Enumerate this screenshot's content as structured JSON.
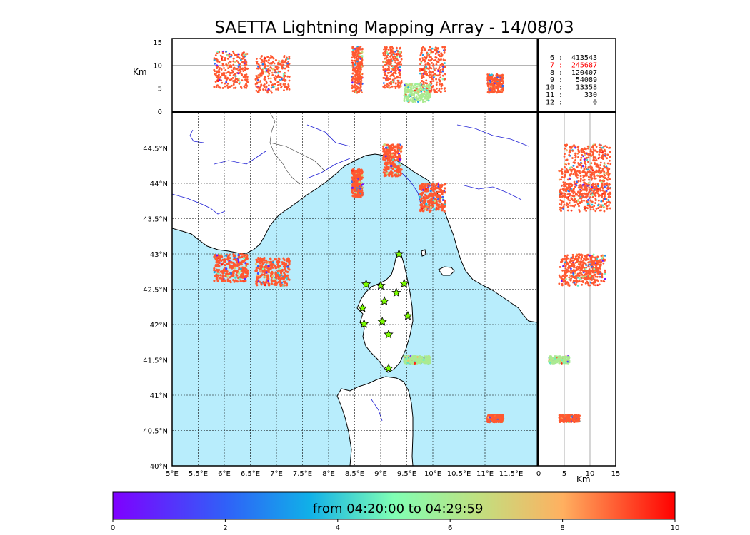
{
  "chart_data": {
    "type": "scatter",
    "title": "SAETTA Lightning Mapping Array - 14/08/03",
    "x_ticks": [
      "5°E",
      "5.5°E",
      "6°E",
      "6.5°E",
      "7°E",
      "7.5°E",
      "8°E",
      "8.5°E",
      "9°E",
      "9.5°E",
      "10°E",
      "10.5°E",
      "11°E",
      "11.5°E"
    ],
    "y_ticks": [
      "40°N",
      "40.5°N",
      "41°N",
      "41.5°N",
      "42°N",
      "42.5°N",
      "43°N",
      "43.5°N",
      "44°N",
      "44.5°N"
    ],
    "xlim": [
      5,
      12
    ],
    "ylim": [
      40,
      45
    ],
    "alt_ticks": [
      "0",
      "5",
      "10",
      "15"
    ],
    "alt_range": [
      0,
      15
    ],
    "alt_unit": "Km",
    "altitude_counts": [
      {
        "label": "6",
        "count": "413543",
        "highlight": false
      },
      {
        "label": "7",
        "count": "245687",
        "highlight": true
      },
      {
        "label": "8",
        "count": "120407",
        "highlight": false
      },
      {
        "label": "9",
        "count": "54089",
        "highlight": false
      },
      {
        "label": "10",
        "count": "13358",
        "highlight": false
      },
      {
        "label": "11",
        "count": "330",
        "highlight": false
      },
      {
        "label": "12",
        "count": "0",
        "highlight": false
      }
    ],
    "highlight_color": "#ff0000",
    "colorbar": {
      "label": "from 04:20:00 to 04:29:59",
      "ticks": [
        "0",
        "2",
        "4",
        "6",
        "8",
        "10"
      ],
      "range": [
        0,
        10
      ],
      "colormap": "rainbow"
    },
    "clusters": [
      {
        "lon": [
          5.8,
          6.45
        ],
        "lat": [
          42.6,
          43.0
        ],
        "alt": [
          5,
          13
        ],
        "time": 9
      },
      {
        "lon": [
          6.6,
          7.25
        ],
        "lat": [
          42.55,
          42.95
        ],
        "alt": [
          4,
          12
        ],
        "time": 9
      },
      {
        "lon": [
          8.45,
          8.65
        ],
        "lat": [
          43.8,
          44.2
        ],
        "alt": [
          4,
          14
        ],
        "time": 9
      },
      {
        "lon": [
          9.05,
          9.4
        ],
        "lat": [
          44.1,
          44.55
        ],
        "alt": [
          5,
          14
        ],
        "time": 9
      },
      {
        "lon": [
          9.75,
          10.25
        ],
        "lat": [
          43.6,
          44.0
        ],
        "alt": [
          4,
          14
        ],
        "time": 9
      },
      {
        "lon": [
          9.45,
          9.95
        ],
        "lat": [
          41.45,
          41.55
        ],
        "alt": [
          2,
          6
        ],
        "time": 6
      },
      {
        "lon": [
          11.05,
          11.35
        ],
        "lat": [
          40.62,
          40.72
        ],
        "alt": [
          4,
          8
        ],
        "time": 9
      }
    ],
    "sensor_stations": [
      {
        "lon": 9.35,
        "lat": 43.0
      },
      {
        "lon": 8.72,
        "lat": 42.57
      },
      {
        "lon": 9.0,
        "lat": 42.55
      },
      {
        "lon": 9.45,
        "lat": 42.58
      },
      {
        "lon": 9.3,
        "lat": 42.45
      },
      {
        "lon": 9.07,
        "lat": 42.33
      },
      {
        "lon": 8.65,
        "lat": 42.23
      },
      {
        "lon": 9.52,
        "lat": 42.12
      },
      {
        "lon": 8.68,
        "lat": 42.01
      },
      {
        "lon": 9.03,
        "lat": 42.04
      },
      {
        "lon": 9.15,
        "lat": 41.86
      },
      {
        "lon": 9.15,
        "lat": 41.38
      }
    ],
    "colors": {
      "sea": "#b8edfc",
      "land": "#ffffff",
      "rivers": "#1f1fd4",
      "stations": "#7cfc00"
    }
  }
}
